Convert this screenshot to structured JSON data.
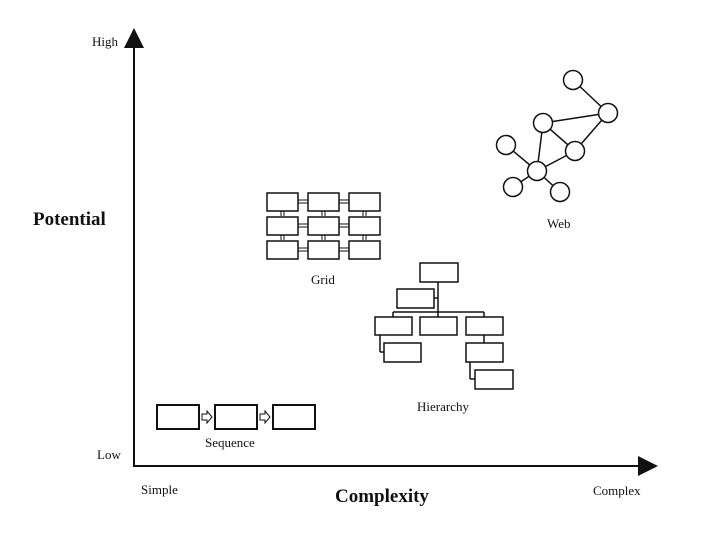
{
  "axes": {
    "y_title": "Potential",
    "x_title": "Complexity",
    "y_high": "High",
    "y_low": "Low",
    "x_low": "Simple",
    "x_high": "Complex"
  },
  "diagrams": {
    "sequence": "Sequence",
    "grid": "Grid",
    "hierarchy": "Hierarchy",
    "web": "Web"
  }
}
